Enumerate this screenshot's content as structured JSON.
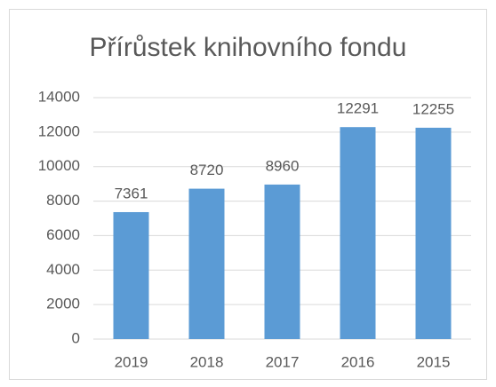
{
  "chart_data": {
    "type": "bar",
    "title": "Přírůstek knihovního fondu",
    "categories": [
      "2019",
      "2018",
      "2017",
      "2016",
      "2015"
    ],
    "values": [
      7361,
      8720,
      8960,
      12291,
      12255
    ],
    "color": "#5b9bd5",
    "ylim": [
      0,
      14000
    ],
    "yticks": [
      0,
      2000,
      4000,
      6000,
      8000,
      10000,
      12000,
      14000
    ],
    "grid": true
  }
}
